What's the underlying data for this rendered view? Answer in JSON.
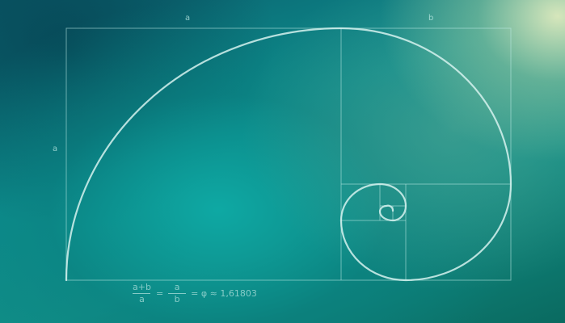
{
  "labels": {
    "top_a": "a",
    "top_b": "b",
    "side_a": "a"
  },
  "formula": {
    "frac1_num": "a+b",
    "frac1_den": "a",
    "equals1": "=",
    "frac2_num": "a",
    "frac2_den": "b",
    "result": "= φ ≈ 1,61803"
  },
  "colors": {
    "line": "#bfe9e4",
    "spiral": "#d6f2ee"
  }
}
